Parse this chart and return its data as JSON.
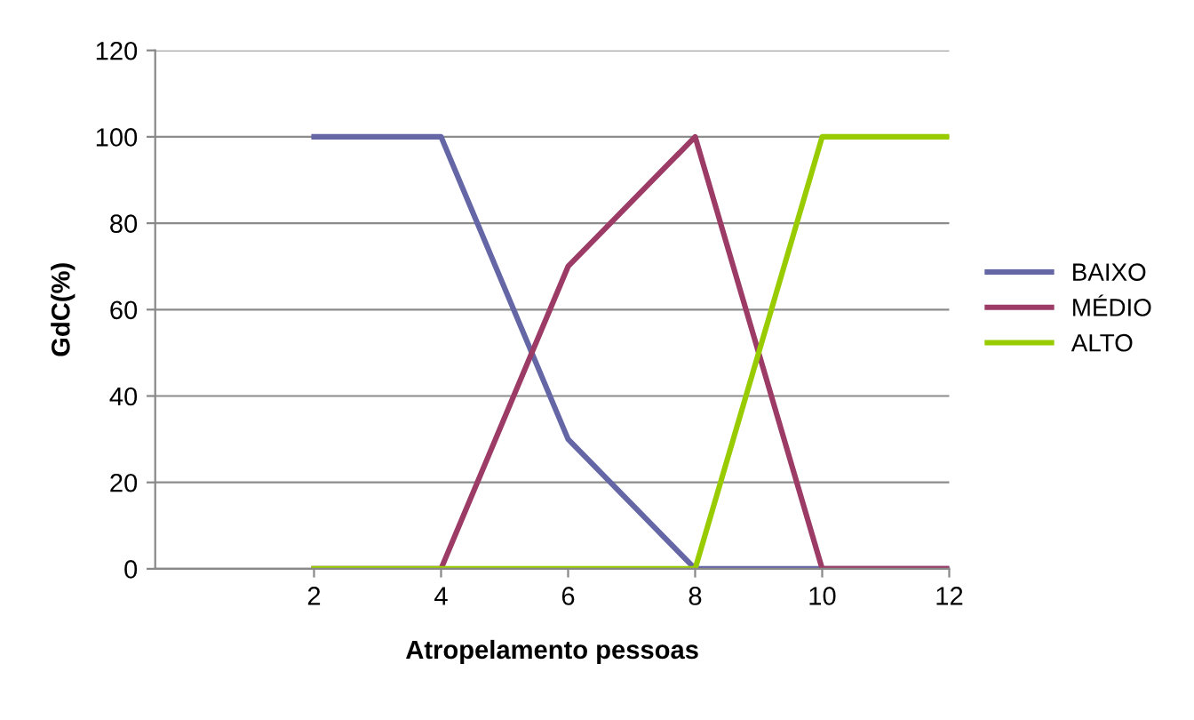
{
  "chart_data": {
    "type": "line",
    "xlabel": "Atropelamento pessoas",
    "ylabel": "GdC(%)",
    "x": [
      2,
      4,
      6,
      8,
      10,
      12
    ],
    "series": [
      {
        "name": "BAIXO",
        "color": "#6466a6",
        "values": [
          100,
          100,
          30,
          0,
          0,
          0
        ]
      },
      {
        "name": "MÉDIO",
        "color": "#9b3b66",
        "values": [
          0,
          0,
          70,
          100,
          0,
          0
        ]
      },
      {
        "name": "ALTO",
        "color": "#99cc00",
        "values": [
          0,
          0,
          0,
          0,
          100,
          100
        ]
      }
    ],
    "xlim": [
      -0.5,
      12
    ],
    "xticks": [
      2,
      4,
      6,
      8,
      10,
      12
    ],
    "ylim": [
      0,
      120
    ],
    "yticks": [
      0,
      20,
      40,
      60,
      80,
      100,
      120
    ],
    "grid": "y",
    "legend": "right",
    "marker": "none",
    "line_style": "solid"
  }
}
